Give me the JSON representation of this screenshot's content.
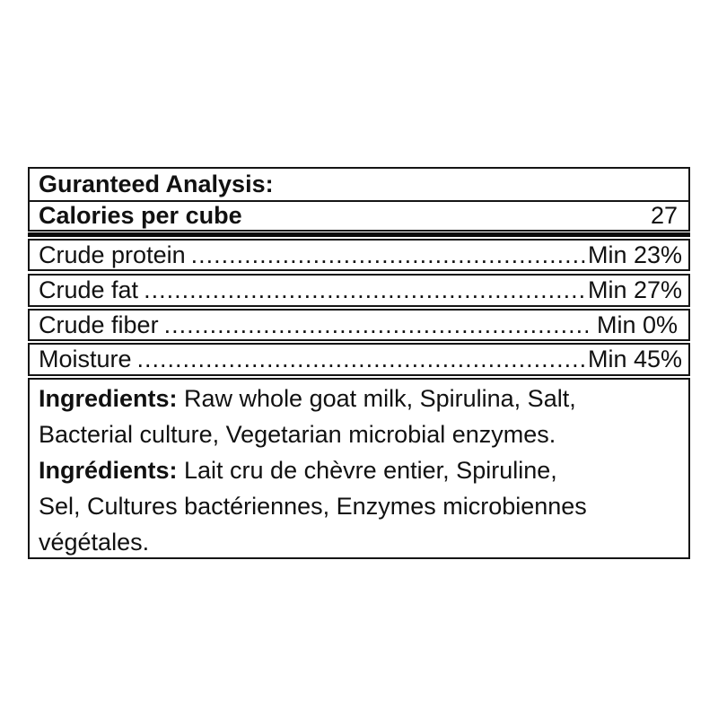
{
  "colors": {
    "border": "#151515",
    "text": "#111111",
    "background": "#ffffff",
    "separator_bar": "#0a0a0a"
  },
  "analysis": {
    "header": "Guranteed Analysis:",
    "calories": {
      "label": "Calories per cube",
      "value": "27"
    },
    "rows": [
      {
        "label": "Crude protein",
        "value": "Min 23%"
      },
      {
        "label": "Crude fat",
        "value": "Min 27%"
      },
      {
        "label": "Crude fiber",
        "value": "Min 0%"
      },
      {
        "label": "Moisture",
        "value": "Min 45%"
      }
    ],
    "leader_dots": ".............................................................................................................."
  },
  "ingredients": {
    "en": {
      "label": "Ingredients:",
      "line1_rest": " Raw whole goat milk, Spirulina, Salt,",
      "line2": "Bacterial culture, Vegetarian microbial enzymes."
    },
    "fr": {
      "label": "Ingrédients:",
      "line1_rest": " Lait cru de chèvre entier, Spiruline,",
      "line2": "Sel, Cultures bactériennes, Enzymes microbiennes",
      "line3": "végétales."
    }
  }
}
